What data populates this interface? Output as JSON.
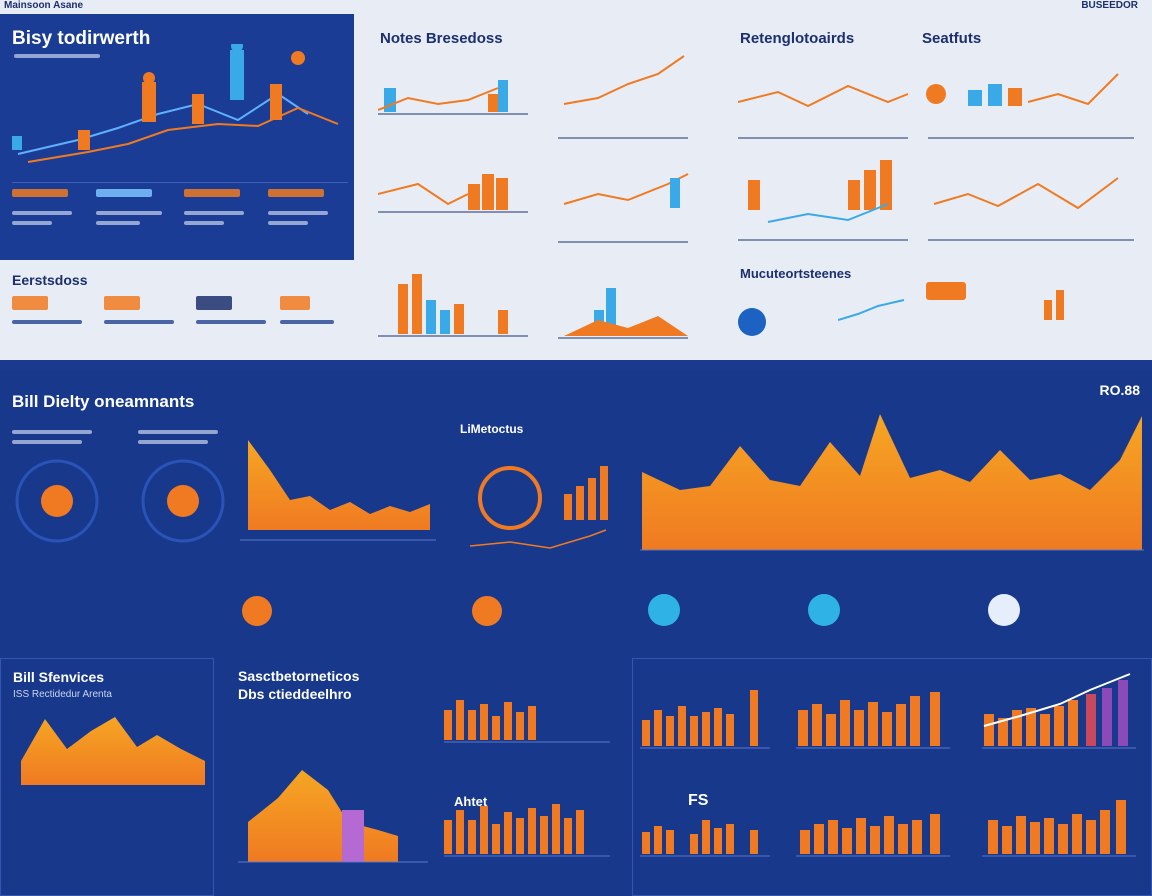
{
  "header": {
    "left_label": "Mainsoon Asane",
    "right_label": "BUSEEDOR"
  },
  "top_left": {
    "title": "Bisy todirwerth"
  },
  "top_center": {
    "title": "Notes Bresedoss"
  },
  "top_right": {
    "title_a": "Retenglotoairds",
    "title_b": "Seatfuts"
  },
  "mid_left": {
    "title": "Eerstsdoss"
  },
  "mid_right": {
    "title": "Mucuteortsteenes"
  },
  "dark_section": {
    "title": "Bill Dielty oneamnants",
    "corner_value": "RO.88",
    "subtitle_c": "LiMetoctus"
  },
  "bottom": {
    "left_title": "Bill Sfenvices",
    "left_subtitle": "ISS Rectidedur Arenta",
    "center_title_1": "Sasctbetorneticos",
    "center_title_2": "Dbs ctieddeelhro",
    "chart_label": "Ahtet",
    "chart_label_2": "FS"
  },
  "colors": {
    "accent_orange": "#f07a22",
    "accent_blue": "#2fb3e6",
    "bg_dark": "#163585",
    "bg_light": "#e8edf5"
  }
}
